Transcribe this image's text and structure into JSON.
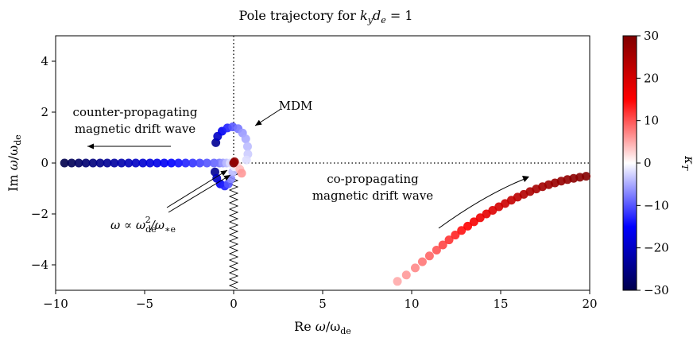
{
  "chart_data": {
    "type": "scatter",
    "title": "Pole trajectory for k_y d_e = 1",
    "title_parts": {
      "prefix": "Pole trajectory for ",
      "k": "k",
      "y": "y",
      "d": "d",
      "e": "e",
      "suffix": " = 1"
    },
    "xlabel": "Re ω/ω_de",
    "ylabel": "Im ω/ω_de",
    "xlim": [
      -10,
      20
    ],
    "ylim": [
      -5,
      5
    ],
    "xticks": [
      -10,
      -5,
      0,
      5,
      10,
      15,
      20
    ],
    "xtick_labels": [
      "−10",
      "−5",
      "0",
      "5",
      "10",
      "15",
      "20"
    ],
    "yticks": [
      -4,
      -2,
      0,
      2,
      4
    ],
    "ytick_labels": [
      "−4",
      "−2",
      "0",
      "2",
      "4"
    ],
    "colorbar": {
      "label": "κ_T",
      "range": [
        -30,
        30
      ],
      "ticks": [
        -30,
        -20,
        -10,
        0,
        10,
        20,
        30
      ],
      "tick_labels": [
        "−30",
        "−20",
        "−10",
        "0",
        "10",
        "20",
        "30"
      ],
      "colormap": "seismic",
      "colors": {
        "low": "#00004c",
        "mid_low": "#0000ff",
        "center": "#ffffff",
        "mid_high": "#ff0000",
        "high": "#7f0000"
      }
    },
    "series": [
      {
        "description": "counter-propagating magnetic drift wave",
        "points": [
          {
            "x": -9.5,
            "y": 0,
            "kT": -30
          },
          {
            "x": -9.1,
            "y": 0,
            "kT": -29
          },
          {
            "x": -8.7,
            "y": 0,
            "kT": -28
          },
          {
            "x": -8.3,
            "y": 0,
            "kT": -27
          },
          {
            "x": -7.9,
            "y": 0,
            "kT": -26
          },
          {
            "x": -7.5,
            "y": 0,
            "kT": -25
          },
          {
            "x": -7.1,
            "y": 0,
            "kT": -24
          },
          {
            "x": -6.7,
            "y": 0,
            "kT": -23
          },
          {
            "x": -6.3,
            "y": 0,
            "kT": -22
          },
          {
            "x": -5.9,
            "y": 0,
            "kT": -21
          },
          {
            "x": -5.5,
            "y": 0,
            "kT": -20
          },
          {
            "x": -5.1,
            "y": 0,
            "kT": -19
          },
          {
            "x": -4.7,
            "y": 0,
            "kT": -18
          },
          {
            "x": -4.3,
            "y": 0,
            "kT": -17
          },
          {
            "x": -3.9,
            "y": 0,
            "kT": -16
          },
          {
            "x": -3.5,
            "y": 0,
            "kT": -15
          },
          {
            "x": -3.1,
            "y": 0,
            "kT": -14
          },
          {
            "x": -2.7,
            "y": 0,
            "kT": -13
          },
          {
            "x": -2.3,
            "y": 0,
            "kT": -12
          },
          {
            "x": -1.9,
            "y": 0,
            "kT": -11
          },
          {
            "x": -1.5,
            "y": 0,
            "kT": -10
          },
          {
            "x": -1.1,
            "y": 0,
            "kT": -9
          },
          {
            "x": -0.8,
            "y": 0,
            "kT": -8
          }
        ]
      },
      {
        "description": "MDM (upper branch)",
        "points": [
          {
            "x": -1.0,
            "y": 0.8,
            "kT": -24
          },
          {
            "x": -0.9,
            "y": 1.05,
            "kT": -20
          },
          {
            "x": -0.65,
            "y": 1.25,
            "kT": -16
          },
          {
            "x": -0.35,
            "y": 1.38,
            "kT": -13
          },
          {
            "x": -0.05,
            "y": 1.42,
            "kT": -10
          },
          {
            "x": 0.25,
            "y": 1.35,
            "kT": -8
          },
          {
            "x": 0.5,
            "y": 1.18,
            "kT": -6
          },
          {
            "x": 0.68,
            "y": 0.95,
            "kT": -5
          },
          {
            "x": 0.78,
            "y": 0.65,
            "kT": -4
          },
          {
            "x": 0.8,
            "y": 0.35,
            "kT": -3
          },
          {
            "x": 0.72,
            "y": 0.12,
            "kT": -2
          }
        ]
      },
      {
        "description": "MDM (lower branch)",
        "points": [
          {
            "x": -1.05,
            "y": -0.35,
            "kT": -24
          },
          {
            "x": -0.95,
            "y": -0.6,
            "kT": -20
          },
          {
            "x": -0.75,
            "y": -0.82,
            "kT": -16
          },
          {
            "x": -0.5,
            "y": -0.9,
            "kT": -13
          },
          {
            "x": -0.3,
            "y": -0.82,
            "kT": -10
          },
          {
            "x": -0.15,
            "y": -0.62,
            "kT": -7
          },
          {
            "x": -0.05,
            "y": -0.35,
            "kT": -4
          },
          {
            "x": 0.05,
            "y": -0.15,
            "kT": -1
          },
          {
            "x": 0.2,
            "y": -0.1,
            "kT": 2
          },
          {
            "x": 0.35,
            "y": -0.25,
            "kT": 4
          },
          {
            "x": 0.45,
            "y": -0.4,
            "kT": 6
          }
        ]
      },
      {
        "description": "ω ∝ ω_de²/ω_*e",
        "points": [
          {
            "x": -0.6,
            "y": 0,
            "kT": -6
          },
          {
            "x": -0.4,
            "y": 0,
            "kT": -4
          },
          {
            "x": -0.2,
            "y": 0,
            "kT": -2
          },
          {
            "x": 0.0,
            "y": 0,
            "kT": 30
          },
          {
            "x": 0.05,
            "y": 0.05,
            "kT": 28
          }
        ]
      },
      {
        "description": "co-propagating magnetic drift wave",
        "points": [
          {
            "x": 9.2,
            "y": -4.65,
            "kT": 5
          },
          {
            "x": 9.7,
            "y": -4.4,
            "kT": 6
          },
          {
            "x": 10.2,
            "y": -4.12,
            "kT": 7
          },
          {
            "x": 10.6,
            "y": -3.88,
            "kT": 8
          },
          {
            "x": 11.0,
            "y": -3.65,
            "kT": 9
          },
          {
            "x": 11.4,
            "y": -3.42,
            "kT": 10
          },
          {
            "x": 11.75,
            "y": -3.22,
            "kT": 11
          },
          {
            "x": 12.1,
            "y": -3.02,
            "kT": 12
          },
          {
            "x": 12.45,
            "y": -2.83,
            "kT": 13
          },
          {
            "x": 12.8,
            "y": -2.65,
            "kT": 14
          },
          {
            "x": 13.15,
            "y": -2.48,
            "kT": 15
          },
          {
            "x": 13.5,
            "y": -2.31,
            "kT": 16
          },
          {
            "x": 13.85,
            "y": -2.15,
            "kT": 17
          },
          {
            "x": 14.2,
            "y": -2.0,
            "kT": 18
          },
          {
            "x": 14.55,
            "y": -1.86,
            "kT": 19
          },
          {
            "x": 14.9,
            "y": -1.72,
            "kT": 20
          },
          {
            "x": 15.25,
            "y": -1.59,
            "kT": 21
          },
          {
            "x": 15.6,
            "y": -1.46,
            "kT": 22
          },
          {
            "x": 15.95,
            "y": -1.34,
            "kT": 23
          },
          {
            "x": 16.3,
            "y": -1.23,
            "kT": 24
          },
          {
            "x": 16.65,
            "y": -1.12,
            "kT": 25
          },
          {
            "x": 17.0,
            "y": -1.02,
            "kT": 25.5
          },
          {
            "x": 17.35,
            "y": -0.93,
            "kT": 26
          },
          {
            "x": 17.7,
            "y": -0.85,
            "kT": 26.5
          },
          {
            "x": 18.05,
            "y": -0.78,
            "kT": 27
          },
          {
            "x": 18.4,
            "y": -0.71,
            "kT": 27.5
          },
          {
            "x": 18.75,
            "y": -0.65,
            "kT": 28
          },
          {
            "x": 19.1,
            "y": -0.6,
            "kT": 28.5
          },
          {
            "x": 19.45,
            "y": -0.56,
            "kT": 29
          },
          {
            "x": 19.8,
            "y": -0.52,
            "kT": 29.5
          }
        ]
      }
    ],
    "annotations": {
      "counter": [
        "counter-propagating",
        "magnetic drift wave"
      ],
      "mdm": "MDM",
      "co": [
        "co-propagating",
        "magnetic drift wave"
      ],
      "omega_prefix": "ω ∝ ω",
      "omega_sub_de": "de",
      "omega_sup_2": "2",
      "omega_slash": "/ω",
      "omega_sub_star": "∗e"
    },
    "xlabel_parts": {
      "prefix": "Re ",
      "omega": "ω",
      "slash": "/ω",
      "sub": "de"
    },
    "ylabel_parts": {
      "prefix": "Im ",
      "omega": "ω",
      "slash": "/ω",
      "sub": "de"
    },
    "colorbar_label_parts": {
      "kappa": "κ",
      "sub": "T"
    }
  }
}
